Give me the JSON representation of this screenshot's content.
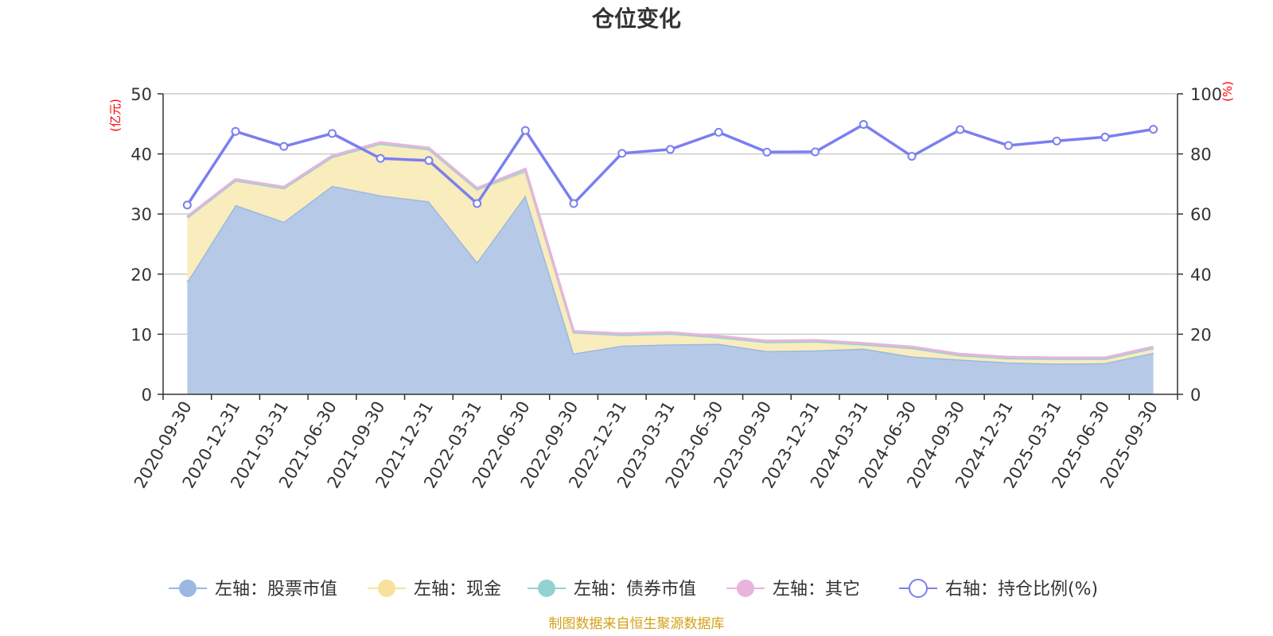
{
  "chart_data": {
    "type": "area",
    "title": "仓位变化",
    "left_axis_unit": "(亿元)",
    "right_axis_unit": "(%)",
    "categories": [
      "2020-09-30",
      "2020-12-31",
      "2021-03-31",
      "2021-06-30",
      "2021-09-30",
      "2021-12-31",
      "2022-03-31",
      "2022-06-30",
      "2022-09-30",
      "2022-12-31",
      "2023-03-31",
      "2023-06-30",
      "2023-09-30",
      "2023-12-31",
      "2024-03-31",
      "2024-06-30",
      "2024-09-30",
      "2024-12-31",
      "2025-03-31",
      "2025-06-30",
      "2025-09-30"
    ],
    "ylim_left": [
      0,
      50
    ],
    "yticks_left": [
      0,
      10,
      20,
      30,
      40,
      50
    ],
    "ylim_right": [
      0,
      100
    ],
    "yticks_right": [
      0,
      20,
      40,
      60,
      80,
      100
    ],
    "stacked": true,
    "series": [
      {
        "name": "左轴：股票市值",
        "axis": "left",
        "color": "#9bb8e0",
        "fill": "#b6cae8",
        "values": [
          18.7,
          31.5,
          28.7,
          34.7,
          33.1,
          32.1,
          22.0,
          33.1,
          6.8,
          8.1,
          8.3,
          8.4,
          7.2,
          7.3,
          7.6,
          6.3,
          5.8,
          5.3,
          5.1,
          5.2,
          6.9
        ]
      },
      {
        "name": "左轴：现金",
        "axis": "left",
        "color": "#f7e29c",
        "fill": "#f9ecbd",
        "values": [
          10.7,
          4.1,
          5.6,
          4.8,
          8.6,
          8.7,
          12.1,
          3.8,
          3.5,
          1.8,
          1.8,
          1.1,
          1.5,
          1.5,
          0.7,
          1.4,
          0.7,
          0.7,
          0.8,
          0.7,
          0.8
        ]
      },
      {
        "name": "左轴：债券市值",
        "axis": "left",
        "color": "#92d3d2",
        "fill": "#b7e3e2",
        "values": [
          0,
          0,
          0,
          0,
          0,
          0,
          0,
          0.4,
          0,
          0,
          0,
          0,
          0,
          0,
          0,
          0,
          0,
          0,
          0,
          0,
          0
        ]
      },
      {
        "name": "左轴：其它",
        "axis": "left",
        "color": "#e6b4dc",
        "fill": "#efcce8",
        "values": [
          0.2,
          0.2,
          0.2,
          0.2,
          0.2,
          0.2,
          0.2,
          0.2,
          0.2,
          0.2,
          0.2,
          0.2,
          0.2,
          0.2,
          0.2,
          0.2,
          0.2,
          0.2,
          0.2,
          0.2,
          0.2
        ]
      },
      {
        "name": "右轴：持仓比例(%)",
        "axis": "right",
        "type": "line",
        "color": "#7b7ff0",
        "values": [
          63,
          87.5,
          82.5,
          86.8,
          78.5,
          77.8,
          63.5,
          87.8,
          63.5,
          80.2,
          81.5,
          87.2,
          80.6,
          80.7,
          89.8,
          79.2,
          88.1,
          82.8,
          84.3,
          85.6,
          88.2
        ]
      }
    ],
    "legend_position": "bottom",
    "grid": true
  },
  "footer": {
    "source_text": "制图数据来自恒生聚源数据库"
  }
}
